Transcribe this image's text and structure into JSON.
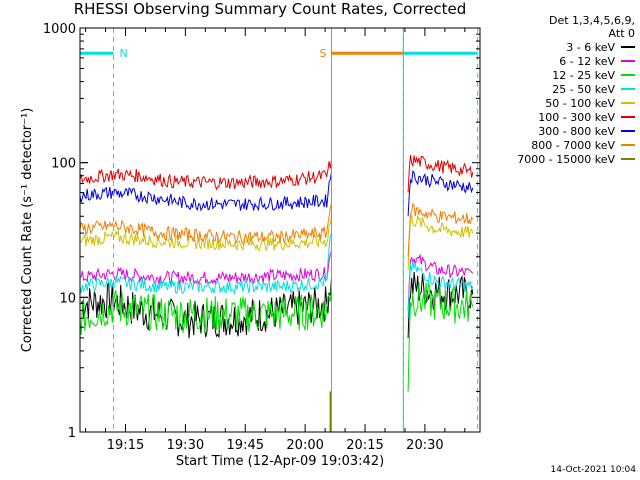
{
  "title": "RHESSI Observing Summary Count Rates, Corrected",
  "xlabel": "Start Time (12-Apr-09 19:03:42)",
  "stamp": "14-Oct-2021 10:04",
  "legend": {
    "header_line1": "Det 1,3,4,5,6,9,",
    "header_line2": "Att 0"
  },
  "flag_labels": {
    "night": "N",
    "saa": "S"
  },
  "chart_data": {
    "type": "line",
    "title": "RHESSI Observing Summary Count Rates, Corrected",
    "xlabel": "Start Time (12-Apr-09 19:03:42)",
    "ylabel": "Corrected Count Rate (s⁻¹ detector⁻¹)",
    "yscale": "log",
    "ylim": [
      1,
      1000
    ],
    "xlim_minutes": [
      19.06,
      20.73
    ],
    "x_ticks": [
      {
        "label": "19:15",
        "hour": 19.25
      },
      {
        "label": "19:30",
        "hour": 19.5
      },
      {
        "label": "19:45",
        "hour": 19.75
      },
      {
        "label": "20:00",
        "hour": 20.0
      },
      {
        "label": "20:15",
        "hour": 20.25
      },
      {
        "label": "20:30",
        "hour": 20.5
      }
    ],
    "y_ticks": [
      {
        "label": "1",
        "value": 1
      },
      {
        "label": "10",
        "value": 10
      },
      {
        "label": "100",
        "value": 100
      },
      {
        "label": "1000",
        "value": 1000
      }
    ],
    "grid": false,
    "legend_position": "right",
    "series": [
      {
        "name": "3 - 6 keV",
        "color": "#000000",
        "values1": [
          [
            19.06,
            9
          ],
          [
            19.2,
            9.5
          ],
          [
            19.3,
            8
          ],
          [
            19.5,
            6.8
          ],
          [
            19.7,
            7
          ],
          [
            19.9,
            7.8
          ],
          [
            20.09,
            9
          ],
          [
            20.11,
            14
          ]
        ],
        "values2": [
          [
            20.43,
            5
          ],
          [
            20.44,
            12
          ],
          [
            20.55,
            11
          ],
          [
            20.7,
            10.5
          ]
        ]
      },
      {
        "name": "6 - 12 keV",
        "color": "#e000e0",
        "values1": [
          [
            19.06,
            14
          ],
          [
            19.2,
            15
          ],
          [
            19.4,
            14
          ],
          [
            19.7,
            14
          ],
          [
            19.9,
            14.5
          ],
          [
            20.09,
            15
          ],
          [
            20.11,
            22
          ]
        ],
        "values2": [
          [
            20.43,
            8
          ],
          [
            20.44,
            20
          ],
          [
            20.55,
            16
          ],
          [
            20.7,
            15
          ]
        ]
      },
      {
        "name": "12 - 25 keV",
        "color": "#00e000",
        "values1": [
          [
            19.06,
            7
          ],
          [
            19.2,
            8.5
          ],
          [
            19.4,
            7.5
          ],
          [
            19.7,
            7.5
          ],
          [
            19.9,
            7.5
          ],
          [
            20.09,
            8
          ],
          [
            20.11,
            12
          ]
        ],
        "values2": [
          [
            20.43,
            2
          ],
          [
            20.44,
            10
          ],
          [
            20.55,
            9
          ],
          [
            20.7,
            8.5
          ]
        ]
      },
      {
        "name": "25 - 50 keV",
        "color": "#00e0e0",
        "values1": [
          [
            19.06,
            12
          ],
          [
            19.2,
            13
          ],
          [
            19.4,
            12
          ],
          [
            19.7,
            12
          ],
          [
            19.9,
            12
          ],
          [
            20.09,
            13
          ],
          [
            20.11,
            30
          ]
        ],
        "values2": [
          [
            20.43,
            7
          ],
          [
            20.44,
            17
          ],
          [
            20.55,
            13
          ],
          [
            20.7,
            12
          ]
        ]
      },
      {
        "name": "50 - 100 keV",
        "color": "#d0c000",
        "values1": [
          [
            19.06,
            26
          ],
          [
            19.2,
            28
          ],
          [
            19.4,
            26
          ],
          [
            19.7,
            25
          ],
          [
            19.9,
            25
          ],
          [
            20.09,
            26
          ],
          [
            20.11,
            40
          ]
        ],
        "values2": [
          [
            20.43,
            16
          ],
          [
            20.44,
            38
          ],
          [
            20.55,
            32
          ],
          [
            20.7,
            30
          ]
        ]
      },
      {
        "name": "100 - 300 keV",
        "color": "#e00000",
        "values1": [
          [
            19.06,
            75
          ],
          [
            19.2,
            82
          ],
          [
            19.3,
            80
          ],
          [
            19.45,
            72
          ],
          [
            19.7,
            71
          ],
          [
            19.9,
            73
          ],
          [
            20.09,
            80
          ],
          [
            20.11,
            105
          ]
        ],
        "values2": [
          [
            20.43,
            60
          ],
          [
            20.44,
            105
          ],
          [
            20.55,
            95
          ],
          [
            20.7,
            85
          ]
        ]
      },
      {
        "name": "300 - 800 keV",
        "color": "#0000e0",
        "values1": [
          [
            19.06,
            57
          ],
          [
            19.2,
            60
          ],
          [
            19.35,
            56
          ],
          [
            19.5,
            50
          ],
          [
            19.7,
            49
          ],
          [
            19.9,
            50
          ],
          [
            20.09,
            52
          ],
          [
            20.11,
            85
          ]
        ],
        "values2": [
          [
            20.43,
            40
          ],
          [
            20.44,
            80
          ],
          [
            20.55,
            72
          ],
          [
            20.7,
            65
          ]
        ]
      },
      {
        "name": "800 - 7000 keV",
        "color": "#f08000",
        "values1": [
          [
            19.06,
            32
          ],
          [
            19.2,
            34
          ],
          [
            19.4,
            30
          ],
          [
            19.7,
            28
          ],
          [
            19.9,
            28
          ],
          [
            20.09,
            30
          ],
          [
            20.11,
            50
          ]
        ],
        "values2": [
          [
            20.43,
            20
          ],
          [
            20.44,
            45
          ],
          [
            20.55,
            40
          ],
          [
            20.7,
            38
          ]
        ]
      },
      {
        "name": "7000 - 15000 keV",
        "color": "#808000",
        "values1": [
          [
            20.105,
            2
          ]
        ],
        "values2": []
      }
    ],
    "flags": [
      {
        "type": "night",
        "label": "N",
        "color": "#00e0e0",
        "start": 19.06,
        "end": 19.2
      },
      {
        "type": "saa",
        "label": "S",
        "color": "#f08000",
        "start": 20.11,
        "end": 20.41
      },
      {
        "type": "night",
        "label": "",
        "color": "#00e0e0",
        "start": 20.41,
        "end": 20.72
      }
    ]
  }
}
